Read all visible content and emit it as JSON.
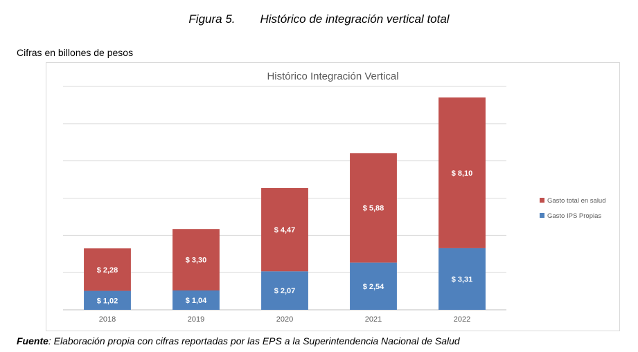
{
  "figure": {
    "number": "Figura 5.",
    "title": "Histórico de integración vertical total"
  },
  "units_note": "Cifras en billones de pesos",
  "source": {
    "label": "Fuente",
    "text": ": Elaboración propia con cifras reportadas por las EPS a la Superintendencia Nacional de Salud"
  },
  "chart_data": {
    "type": "bar",
    "stacked": true,
    "title": "Histórico Integración Vertical",
    "categories": [
      "2018",
      "2019",
      "2020",
      "2021",
      "2022"
    ],
    "series": [
      {
        "name": "Gasto IPS Propias",
        "color": "#4f81bd",
        "values": [
          1.02,
          1.04,
          2.07,
          2.54,
          3.31
        ],
        "labels": [
          "$ 1,02",
          "$ 1,04",
          "$ 2,07",
          "$ 2,54",
          "$ 3,31"
        ]
      },
      {
        "name": "Gasto total en salud",
        "color": "#c0504d",
        "values": [
          2.28,
          3.3,
          4.47,
          5.88,
          8.1
        ],
        "labels": [
          "$ 2,28",
          "$ 3,30",
          "$ 4,47",
          "$ 5,88",
          "$ 8,10"
        ]
      }
    ],
    "legend_order": [
      "Gasto total en salud",
      "Gasto IPS Propias"
    ],
    "ylim": [
      0,
      12
    ],
    "gridlines": true,
    "legend_position": "right",
    "gridline_color": "#d9d9d9",
    "axis_color": "#bfbfbf"
  }
}
